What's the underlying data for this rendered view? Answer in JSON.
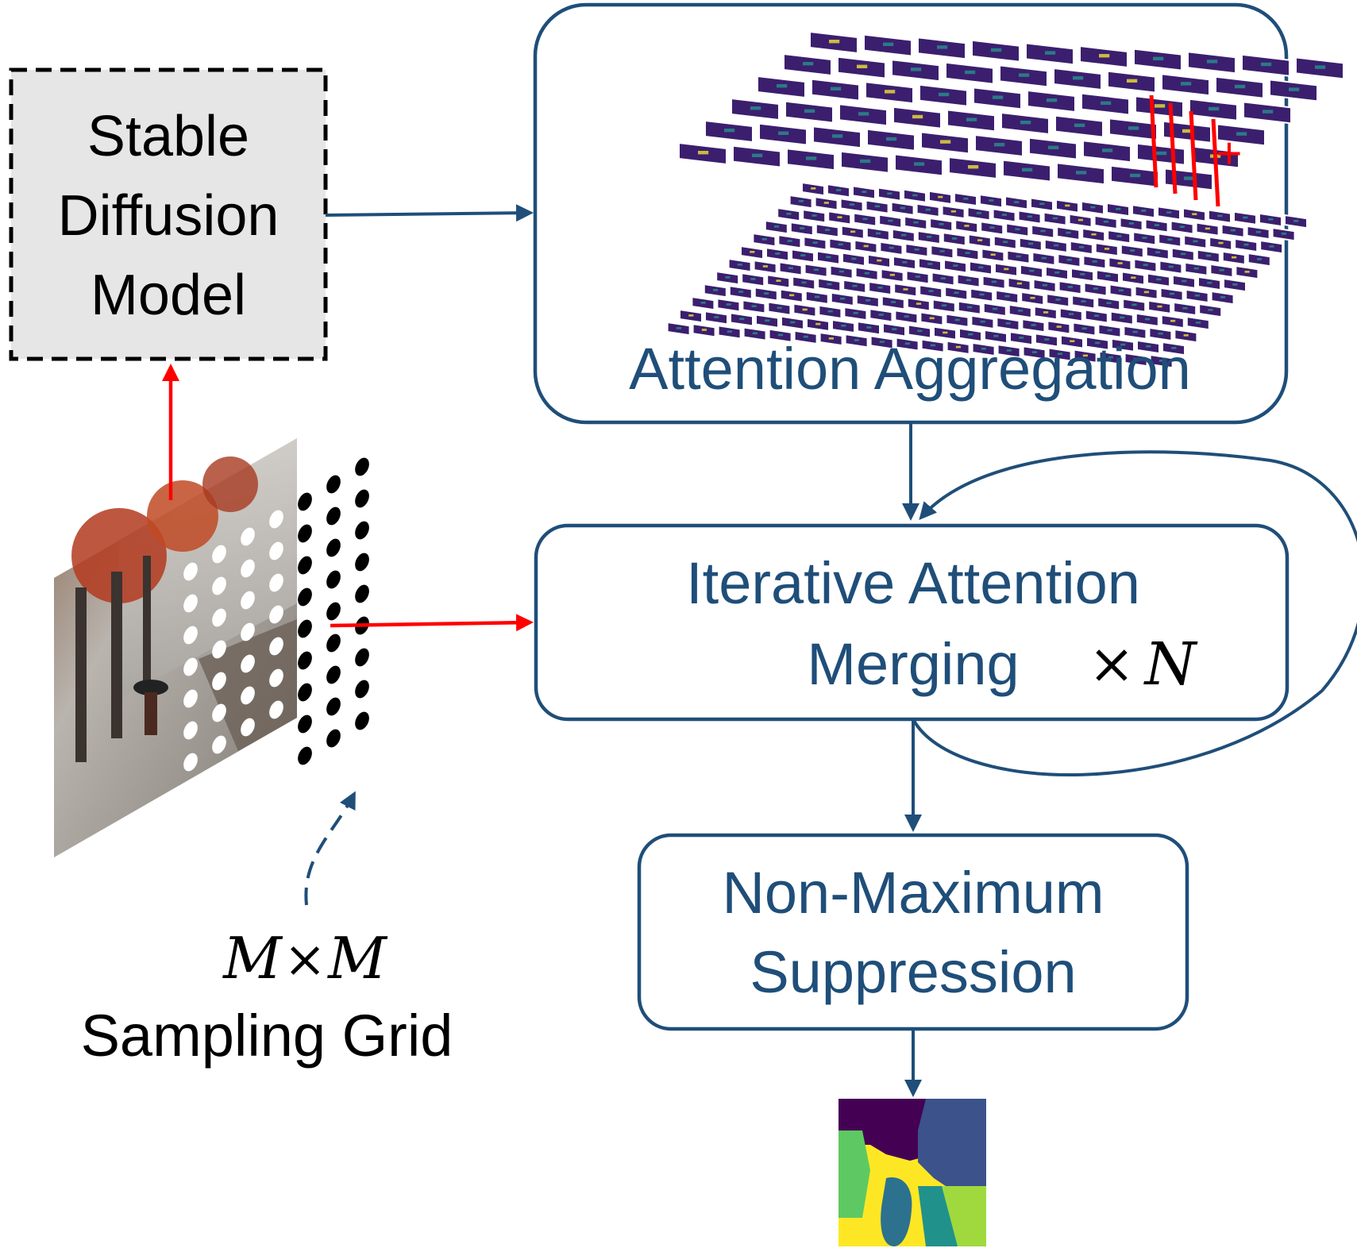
{
  "colors": {
    "navy": "#1f4e79",
    "red": "#ff0000",
    "black": "#000000",
    "model_box_fill": "#e6e6e6",
    "attention_dark": "#3b1f6e",
    "attention_teal": "#2a8a8c",
    "attention_yellow": "#e6d63a"
  },
  "stable_diffusion": {
    "line1": "Stable",
    "line2": "Diffusion",
    "line3": "Model"
  },
  "attention_aggregation": {
    "label": "Attention Aggregation",
    "plus": "+"
  },
  "iterative_merging": {
    "line1": "Iterative Attention",
    "line2": "Merging",
    "times": "×",
    "n": "N"
  },
  "nms": {
    "line1": "Non-Maximum",
    "line2": "Suppression"
  },
  "sampling_grid": {
    "m1": "M",
    "times": "×",
    "m2": "M",
    "label": "Sampling Grid"
  },
  "segmentation_colors": [
    "#440154",
    "#3b528b",
    "#21918c",
    "#5ec962",
    "#fde725",
    "#9fd93e",
    "#2c728e"
  ]
}
